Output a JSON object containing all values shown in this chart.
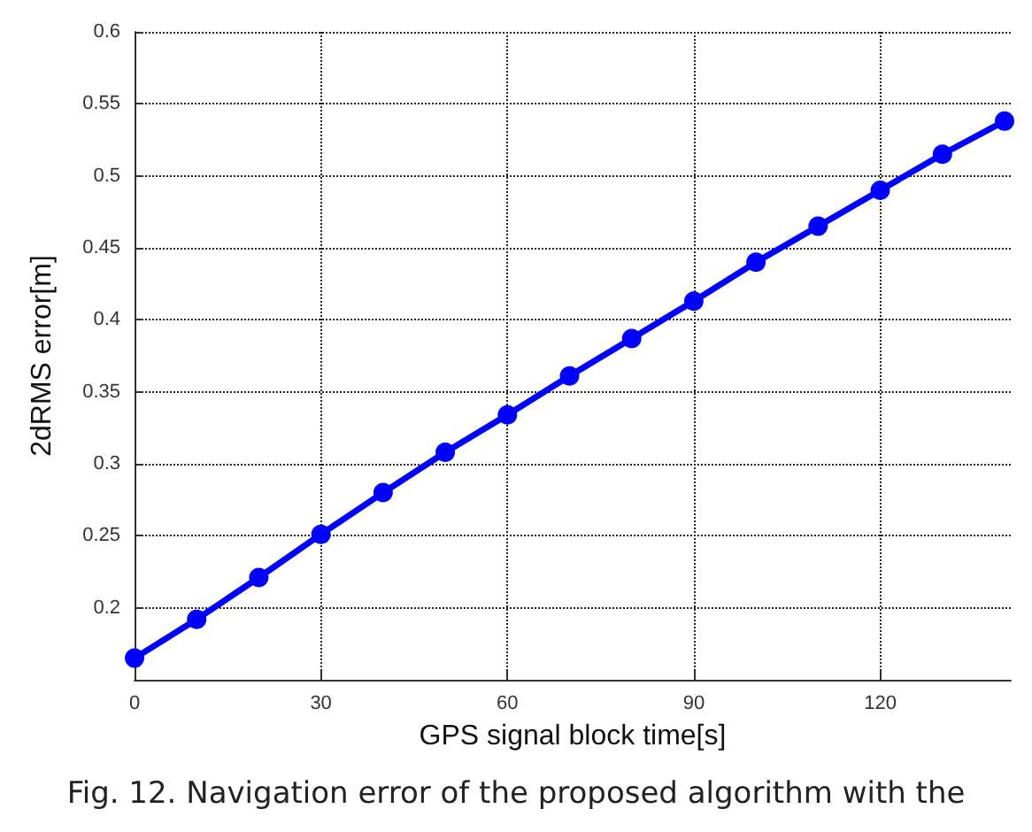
{
  "chart_data": {
    "type": "line",
    "xlabel": "GPS signal block time[s]",
    "ylabel": "2dRMS error[m]",
    "x": [
      0,
      10,
      20,
      30,
      40,
      50,
      60,
      70,
      80,
      90,
      100,
      110,
      120,
      130,
      140
    ],
    "series": [
      {
        "color": "#0000ff",
        "values": [
          0.165,
          0.192,
          0.221,
          0.251,
          0.28,
          0.308,
          0.334,
          0.361,
          0.387,
          0.413,
          0.44,
          0.465,
          0.49,
          0.515,
          0.538
        ]
      }
    ],
    "xlim": [
      0,
      141
    ],
    "xticks": [
      0,
      30,
      60,
      90,
      120
    ],
    "ylim": [
      0.15,
      0.6
    ],
    "yticks": [
      0.2,
      0.25,
      0.3,
      0.35,
      0.4,
      0.45,
      0.5,
      0.55,
      0.6
    ],
    "grid": true,
    "marker": "circle",
    "line_style": "solid",
    "annotations": [
      "Fig. 12. Navigation error of the proposed algorithm with the"
    ]
  }
}
